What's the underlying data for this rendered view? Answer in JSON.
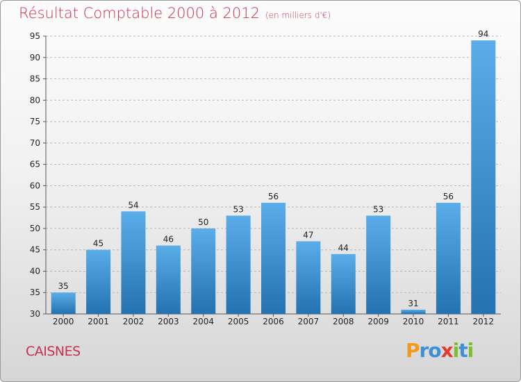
{
  "header": {
    "title": "Résultat Comptable 2000 à 2012",
    "subtitle": "(en milliers d'€)"
  },
  "footer": {
    "commune": "CAISNES",
    "brand": "Proxiti",
    "brand_letters": [
      "P",
      "r",
      "o",
      "x",
      "i",
      "t",
      "i"
    ],
    "brand_colors": [
      "#f29a1e",
      "#3d8fd6",
      "#3d8fd6",
      "#e23b2f",
      "#7bbf2a",
      "#3d8fd6",
      "#7bbf2a"
    ]
  },
  "colors": {
    "title": "#c8304f",
    "bar_top": "#5aade9",
    "bar_bottom": "#2472b0",
    "axis_text": "#222222",
    "grid": "#b7b7b7"
  },
  "chart_data": {
    "type": "bar",
    "title": "Résultat Comptable 2000 à 2012",
    "subtitle": "(en milliers d'€)",
    "xlabel": "",
    "ylabel": "",
    "categories": [
      "2000",
      "2001",
      "2002",
      "2003",
      "2004",
      "2005",
      "2006",
      "2007",
      "2008",
      "2009",
      "2010",
      "2011",
      "2012"
    ],
    "values": [
      35,
      45,
      54,
      46,
      50,
      53,
      56,
      47,
      44,
      53,
      31,
      56,
      94
    ],
    "ylim": [
      30,
      95
    ],
    "yticks": [
      30,
      35,
      40,
      45,
      50,
      55,
      60,
      65,
      70,
      75,
      80,
      85,
      90,
      95
    ],
    "grid": true
  }
}
